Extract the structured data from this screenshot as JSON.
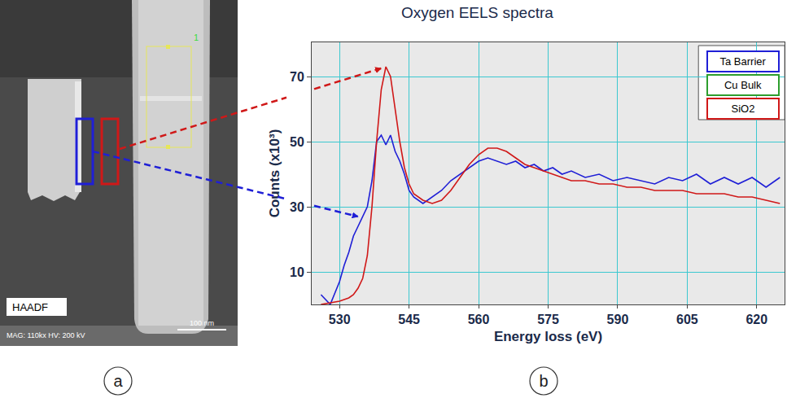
{
  "panel_labels": [
    "a",
    "b"
  ],
  "panel_a": {
    "image_type": "HAADF",
    "mag": "MAG: 110kx",
    "hv": "HV: 200 kV",
    "scale_bar": "100 nm",
    "roi_label": "1"
  },
  "chart_data": {
    "type": "line",
    "title": "Oxygen EELS spectra",
    "x_label": "Energy loss (eV)",
    "y_label": "Counts (x10³)",
    "x": [
      526,
      528,
      530,
      531,
      532,
      533,
      534,
      535,
      536,
      537,
      538,
      539,
      540,
      541,
      542,
      543,
      544,
      545,
      546,
      548,
      550,
      552,
      554,
      556,
      558,
      560,
      562,
      564,
      566,
      568,
      570,
      572,
      574,
      576,
      578,
      580,
      583,
      586,
      589,
      592,
      595,
      598,
      601,
      604,
      607,
      610,
      613,
      616,
      619,
      622,
      625
    ],
    "series": [
      {
        "name": "Ta Barrier",
        "color": "#1f1fd6",
        "values": [
          3,
          0,
          7,
          12,
          16,
          21,
          24,
          27,
          30,
          38,
          50,
          52,
          49,
          52,
          47,
          44,
          40,
          35,
          33,
          31,
          33,
          35,
          38,
          40,
          42,
          44,
          45,
          44,
          43,
          44,
          42,
          43,
          41,
          42,
          40,
          41,
          39,
          40,
          38,
          39,
          38,
          37,
          39,
          38,
          40,
          37,
          39,
          37,
          39,
          36,
          39
        ]
      },
      {
        "name": "Cu Bulk",
        "color": "#2e9e2e",
        "values": [
          null,
          null,
          null,
          null,
          null,
          null,
          null,
          null,
          null,
          null,
          null,
          null,
          null,
          null,
          null,
          null,
          null,
          null,
          null,
          null,
          null,
          null,
          null,
          null,
          null,
          null,
          null,
          null,
          null,
          null,
          null,
          null,
          null,
          null,
          null,
          null,
          null,
          null,
          null,
          null,
          null,
          null,
          null,
          null,
          null,
          null,
          null,
          null,
          null,
          null,
          null
        ]
      },
      {
        "name": "SiO2",
        "color": "#d01818",
        "values": [
          0,
          0.5,
          1,
          1.5,
          2,
          3,
          5,
          8,
          15,
          30,
          50,
          66,
          73,
          70,
          60,
          50,
          42,
          37,
          34,
          32,
          31,
          32,
          35,
          39,
          43,
          46,
          48,
          48,
          47,
          45,
          43,
          42,
          41,
          40,
          39,
          38,
          38,
          37,
          37,
          36,
          36,
          35,
          35,
          35,
          34,
          34,
          34,
          33,
          33,
          32,
          31
        ]
      }
    ],
    "xlim": [
      524,
      626
    ],
    "xticks": [
      530,
      545,
      560,
      575,
      590,
      605,
      620
    ],
    "ylim": [
      0,
      80.5
    ],
    "yticks": [
      10,
      30,
      50,
      70
    ],
    "grid": true,
    "legend": "upper right"
  }
}
